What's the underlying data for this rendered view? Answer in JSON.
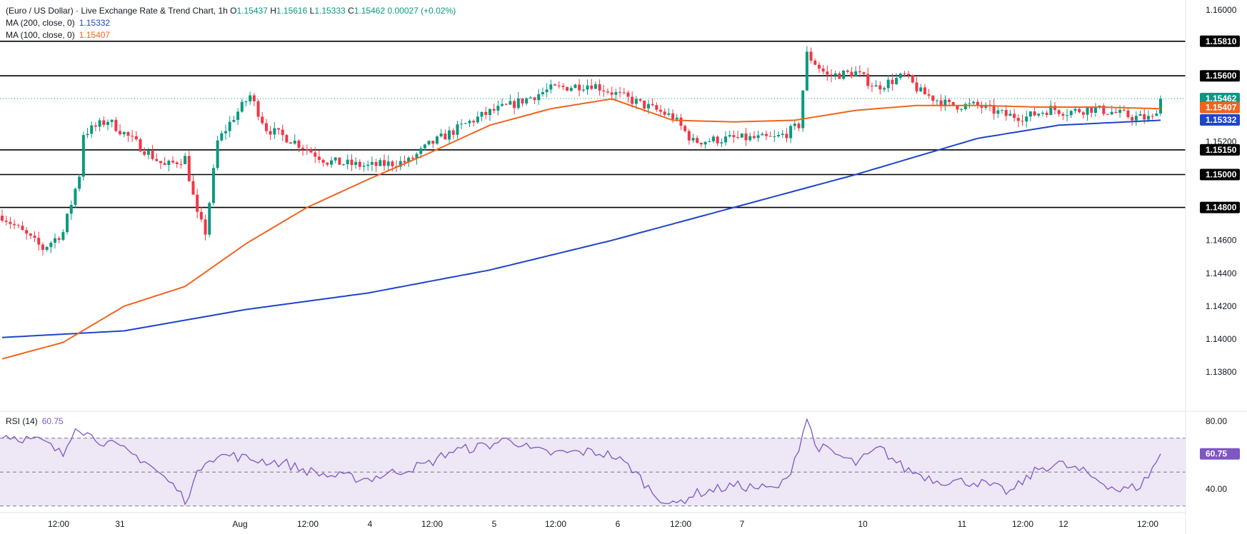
{
  "legend": {
    "title": "(Euro / US Dollar) · Live Exchange Rate & Trend Chart, 1h",
    "ohlc": {
      "o_label": "O",
      "o": "1.15437",
      "h_label": "H",
      "h": "1.15616",
      "l_label": "L",
      "l": "1.15333",
      "c_label": "C",
      "c": "1.15462",
      "change": "0.00027 (+0.02%)"
    },
    "ma200_label": "MA (200, close, 0)",
    "ma200_value": "1.15332",
    "ma100_label": "MA (100, close, 0)",
    "ma100_value": "1.15407",
    "rsi_label": "RSI (14)",
    "rsi_value": "60.75"
  },
  "colors": {
    "up": "#089981",
    "down": "#f23645",
    "ma200": "#1e45c8",
    "ma100": "#f0641e",
    "rsi": "#7e57c2",
    "rsi_band": "#ede7f6",
    "hline": "#000000"
  },
  "chart_data": [
    {
      "type": "candlestick",
      "title": "(Euro / US Dollar) · Live Exchange Rate & Trend Chart, 1h",
      "ylim": [
        1.137,
        1.1605
      ],
      "y_ticks": [
        "1.16000",
        "1.15200",
        "1.14600",
        "1.14400",
        "1.14200",
        "1.14000",
        "1.13800"
      ],
      "x_ticks": [
        "12:00",
        "31",
        "Aug",
        "12:00",
        "4",
        "12:00",
        "5",
        "12:00",
        "6",
        "12:00",
        "7",
        "10",
        "11",
        "12:00",
        "12",
        "12:00"
      ],
      "horizontal_levels": [
        "1.15810",
        "1.15600",
        "1.15150",
        "1.15000",
        "1.14800"
      ],
      "last_price": "1.15462",
      "ma100_tag": "1.15407",
      "ma200_tag": "1.15332",
      "path_anchors": [
        [
          0,
          1.1475
        ],
        [
          10,
          1.1455
        ],
        [
          15,
          1.1465
        ],
        [
          19,
          1.15
        ],
        [
          20,
          1.1525
        ],
        [
          26,
          1.1533
        ],
        [
          40,
          1.1505
        ],
        [
          45,
          1.151
        ],
        [
          48,
          1.1475
        ],
        [
          50,
          1.1465
        ],
        [
          53,
          1.152
        ],
        [
          57,
          1.1535
        ],
        [
          61,
          1.1548
        ],
        [
          65,
          1.1528
        ],
        [
          72,
          1.152
        ],
        [
          80,
          1.1508
        ],
        [
          90,
          1.1505
        ],
        [
          100,
          1.1508
        ],
        [
          105,
          1.1518
        ],
        [
          110,
          1.1525
        ],
        [
          115,
          1.1532
        ],
        [
          120,
          1.1538
        ],
        [
          125,
          1.1542
        ],
        [
          135,
          1.1552
        ],
        [
          145,
          1.1555
        ],
        [
          155,
          1.1545
        ],
        [
          165,
          1.1535
        ],
        [
          170,
          1.152
        ],
        [
          180,
          1.1522
        ],
        [
          190,
          1.1522
        ],
        [
          193,
          1.1525
        ],
        [
          196,
          1.153
        ],
        [
          198,
          1.1573
        ],
        [
          203,
          1.156
        ],
        [
          210,
          1.1562
        ],
        [
          215,
          1.1553
        ],
        [
          222,
          1.156
        ],
        [
          226,
          1.155
        ],
        [
          233,
          1.1542
        ],
        [
          240,
          1.1542
        ],
        [
          247,
          1.1536
        ],
        [
          252,
          1.1535
        ],
        [
          258,
          1.154
        ],
        [
          262,
          1.1538
        ],
        [
          268,
          1.154
        ],
        [
          273,
          1.1538
        ],
        [
          278,
          1.1535
        ],
        [
          283,
          1.1534
        ],
        [
          284,
          1.154
        ],
        [
          285,
          1.1546
        ]
      ],
      "candle_count": 286,
      "series": [
        {
          "name": "MA (200, close, 0)",
          "anchors": [
            [
              0,
              1.1401
            ],
            [
              30,
              1.1405
            ],
            [
              60,
              1.1418
            ],
            [
              90,
              1.1428
            ],
            [
              120,
              1.1442
            ],
            [
              150,
              1.146
            ],
            [
              180,
              1.148
            ],
            [
              210,
              1.15
            ],
            [
              240,
              1.1522
            ],
            [
              260,
              1.153
            ],
            [
              285,
              1.1533
            ]
          ]
        },
        {
          "name": "MA (100, close, 0)",
          "anchors": [
            [
              0,
              1.1388
            ],
            [
              15,
              1.1398
            ],
            [
              30,
              1.142
            ],
            [
              45,
              1.1432
            ],
            [
              60,
              1.1458
            ],
            [
              75,
              1.148
            ],
            [
              90,
              1.1497
            ],
            [
              105,
              1.1513
            ],
            [
              120,
              1.153
            ],
            [
              135,
              1.154
            ],
            [
              150,
              1.1546
            ],
            [
              165,
              1.1533
            ],
            [
              180,
              1.1532
            ],
            [
              195,
              1.1533
            ],
            [
              210,
              1.1539
            ],
            [
              225,
              1.1542
            ],
            [
              240,
              1.1542
            ],
            [
              255,
              1.1541
            ],
            [
              270,
              1.1541
            ],
            [
              285,
              1.154
            ]
          ]
        }
      ]
    },
    {
      "type": "line",
      "title": "RSI (14)",
      "ylim": [
        30,
        85
      ],
      "y_ticks": [
        "80.00",
        "40.00"
      ],
      "bands": [
        30,
        50,
        70
      ],
      "series": [
        {
          "name": "RSI (14)",
          "last": 60.75,
          "anchors": [
            [
              0,
              72
            ],
            [
              10,
              68
            ],
            [
              15,
              60
            ],
            [
              18,
              78
            ],
            [
              22,
              71
            ],
            [
              28,
              65
            ],
            [
              35,
              57
            ],
            [
              43,
              40
            ],
            [
              45,
              33
            ],
            [
              50,
              58
            ],
            [
              56,
              60
            ],
            [
              60,
              58
            ],
            [
              70,
              55
            ],
            [
              73,
              52
            ],
            [
              80,
              48
            ],
            [
              90,
              46
            ],
            [
              100,
              52
            ],
            [
              105,
              55
            ],
            [
              110,
              62
            ],
            [
              120,
              66
            ],
            [
              125,
              70
            ],
            [
              130,
              63
            ],
            [
              135,
              61
            ],
            [
              145,
              62
            ],
            [
              150,
              60
            ],
            [
              155,
              52
            ],
            [
              160,
              38
            ],
            [
              165,
              30
            ],
            [
              170,
              37
            ],
            [
              180,
              42
            ],
            [
              190,
              40
            ],
            [
              193,
              45
            ],
            [
              196,
              65
            ],
            [
              198,
              82
            ],
            [
              200,
              66
            ],
            [
              210,
              55
            ],
            [
              216,
              64
            ],
            [
              222,
              52
            ],
            [
              230,
              45
            ],
            [
              240,
              44
            ],
            [
              248,
              38
            ],
            [
              255,
              52
            ],
            [
              260,
              55
            ],
            [
              266,
              50
            ],
            [
              270,
              45
            ],
            [
              275,
              39
            ],
            [
              280,
              42
            ],
            [
              282,
              48
            ],
            [
              285,
              60.75
            ]
          ]
        }
      ]
    }
  ]
}
